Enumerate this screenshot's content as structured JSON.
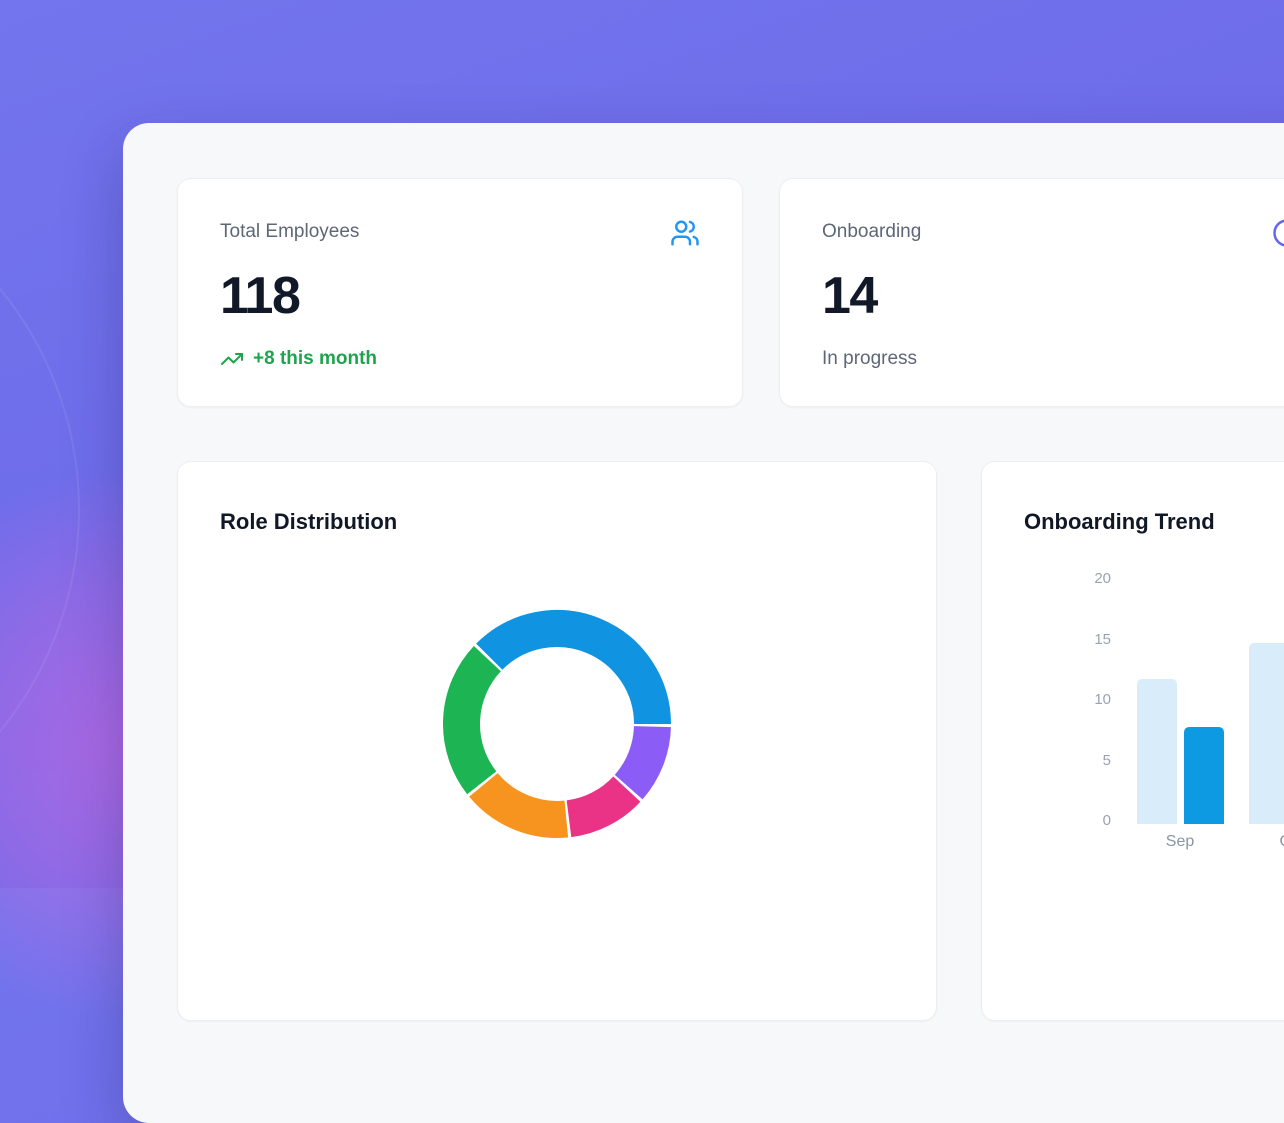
{
  "stats": [
    {
      "label": "Total Employees",
      "value": "118",
      "sub": "+8 this month",
      "sub_type": "positive",
      "icon": "users-icon",
      "icon_color": "#2196F3",
      "sub_color": "#1FA44E"
    },
    {
      "label": "Onboarding",
      "value": "14",
      "sub": "In progress",
      "sub_type": "neutral",
      "icon": "clock-icon",
      "icon_color": "#6366F1",
      "sub_color": "#5D6778"
    }
  ],
  "chart_data": [
    {
      "type": "pie",
      "variant": "donut",
      "title": "Role Distribution",
      "legend_position": "none",
      "start_angle_deg": -46,
      "inner_radius_ratio": 0.67,
      "segments": [
        {
          "name": "blue",
          "color": "#1094E2",
          "percent": 38
        },
        {
          "name": "purple",
          "color": "#8B5CF6",
          "percent": 11.5
        },
        {
          "name": "pink",
          "color": "#EA3286",
          "percent": 11.5
        },
        {
          "name": "orange",
          "color": "#F7941F",
          "percent": 16
        },
        {
          "name": "green",
          "color": "#1DB454",
          "percent": 23
        }
      ]
    },
    {
      "type": "bar",
      "title": "Onboarding Trend",
      "categories": [
        "Sep",
        "Oct"
      ],
      "series": [
        {
          "name": "light-blue",
          "color": "#D9ECFA",
          "values": [
            12,
            15
          ]
        },
        {
          "name": "dark-blue",
          "color": "#0D9AE2",
          "values": [
            8,
            null
          ]
        }
      ],
      "ylim": [
        0,
        20
      ],
      "yticks": [
        0,
        5,
        10,
        15,
        20
      ],
      "xlabel": "",
      "ylabel": "",
      "grid": "off",
      "legend_position": "none"
    }
  ],
  "colors": {
    "background": "#6F6DEB",
    "panel": "#F7F8FA",
    "card": "#FFFFFF",
    "positive": "#1FA44E",
    "muted_text": "#5D6778",
    "title_text": "#101828",
    "axis_text": "#9AA3B0"
  }
}
